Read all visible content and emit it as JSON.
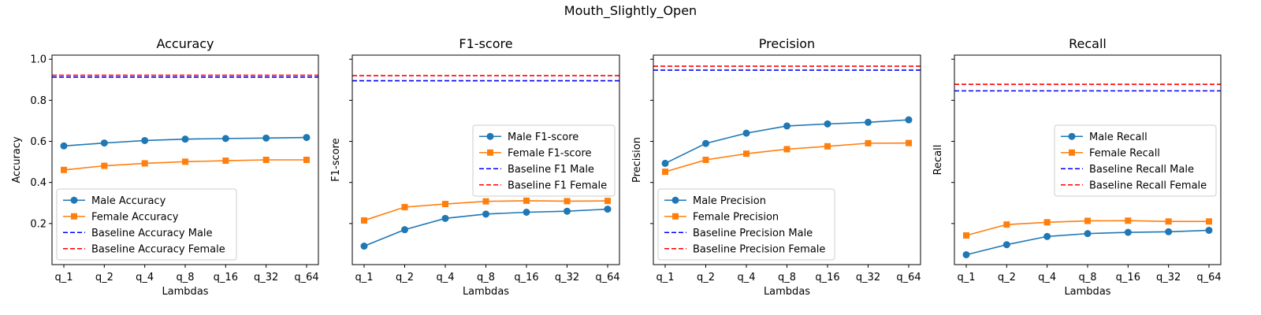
{
  "figure": {
    "suptitle": "Mouth_Slightly_Open"
  },
  "colors": {
    "male": "#1f77b4",
    "female": "#ff7f0e",
    "baseline_male": "#0000ff",
    "baseline_female": "#ff0000"
  },
  "chart_data": [
    {
      "type": "line",
      "title": "Accuracy",
      "xlabel": "Lambdas",
      "ylabel": "Accuracy",
      "categories": [
        "q_1",
        "q_2",
        "q_4",
        "q_8",
        "q_16",
        "q_32",
        "q_64"
      ],
      "ylim": [
        0.0,
        1.02
      ],
      "yticks": [
        0.2,
        0.4,
        0.6,
        0.8,
        1.0
      ],
      "ytick_labels": [
        "0.2",
        "0.4",
        "0.6",
        "0.8",
        "1.0"
      ],
      "grid": false,
      "legend_position": "lower-left",
      "series": [
        {
          "name": "Male Accuracy",
          "marker": "circle",
          "values": [
            0.578,
            0.592,
            0.604,
            0.611,
            0.614,
            0.616,
            0.619
          ]
        },
        {
          "name": "Female Accuracy",
          "marker": "square",
          "values": [
            0.461,
            0.481,
            0.493,
            0.501,
            0.506,
            0.51,
            0.51
          ]
        }
      ],
      "baselines": [
        {
          "name": "Baseline Accuracy Male",
          "value": 0.913
        },
        {
          "name": "Baseline Accuracy Female",
          "value": 0.922
        }
      ]
    },
    {
      "type": "line",
      "title": "F1-score",
      "xlabel": "Lambdas",
      "ylabel": "F1-score",
      "categories": [
        "q_1",
        "q_2",
        "q_4",
        "q_8",
        "q_16",
        "q_32",
        "q_64"
      ],
      "ylim": [
        0.0,
        1.02
      ],
      "yticks": [
        0.2,
        0.4,
        0.6,
        0.8,
        1.0
      ],
      "ytick_labels": [
        "",
        "",
        "",
        "",
        ""
      ],
      "grid": false,
      "legend_position": "center-right",
      "series": [
        {
          "name": "Male F1-score",
          "marker": "circle",
          "values": [
            0.09,
            0.17,
            0.225,
            0.246,
            0.255,
            0.26,
            0.27
          ]
        },
        {
          "name": "Female F1-score",
          "marker": "square",
          "values": [
            0.215,
            0.28,
            0.295,
            0.308,
            0.311,
            0.309,
            0.31
          ]
        }
      ],
      "baselines": [
        {
          "name": "Baseline F1 Male",
          "value": 0.895
        },
        {
          "name": "Baseline F1 Female",
          "value": 0.92
        }
      ]
    },
    {
      "type": "line",
      "title": "Precision",
      "xlabel": "Lambdas",
      "ylabel": "Precision",
      "categories": [
        "q_1",
        "q_2",
        "q_4",
        "q_8",
        "q_16",
        "q_32",
        "q_64"
      ],
      "ylim": [
        0.0,
        1.02
      ],
      "yticks": [
        0.2,
        0.4,
        0.6,
        0.8,
        1.0
      ],
      "ytick_labels": [
        "",
        "",
        "",
        "",
        ""
      ],
      "grid": false,
      "legend_position": "lower-left",
      "series": [
        {
          "name": "Male Precision",
          "marker": "circle",
          "values": [
            0.493,
            0.59,
            0.64,
            0.675,
            0.685,
            0.693,
            0.705
          ]
        },
        {
          "name": "Female Precision",
          "marker": "square",
          "values": [
            0.452,
            0.51,
            0.54,
            0.562,
            0.576,
            0.591,
            0.592
          ]
        }
      ],
      "baselines": [
        {
          "name": "Baseline Precision Male",
          "value": 0.947
        },
        {
          "name": "Baseline Precision Female",
          "value": 0.966
        }
      ]
    },
    {
      "type": "line",
      "title": "Recall",
      "xlabel": "Lambdas",
      "ylabel": "Recall",
      "categories": [
        "q_1",
        "q_2",
        "q_4",
        "q_8",
        "q_16",
        "q_32",
        "q_64"
      ],
      "ylim": [
        0.0,
        1.02
      ],
      "yticks": [
        0.2,
        0.4,
        0.6,
        0.8,
        1.0
      ],
      "ytick_labels": [
        "",
        "",
        "",
        "",
        ""
      ],
      "grid": false,
      "legend_position": "center-right",
      "series": [
        {
          "name": "Male Recall",
          "marker": "circle",
          "values": [
            0.048,
            0.097,
            0.137,
            0.151,
            0.157,
            0.16,
            0.167
          ]
        },
        {
          "name": "Female Recall",
          "marker": "square",
          "values": [
            0.142,
            0.195,
            0.206,
            0.213,
            0.214,
            0.21,
            0.21
          ]
        }
      ],
      "baselines": [
        {
          "name": "Baseline Recall Male",
          "value": 0.846
        },
        {
          "name": "Baseline Recall Female",
          "value": 0.878
        }
      ]
    }
  ]
}
